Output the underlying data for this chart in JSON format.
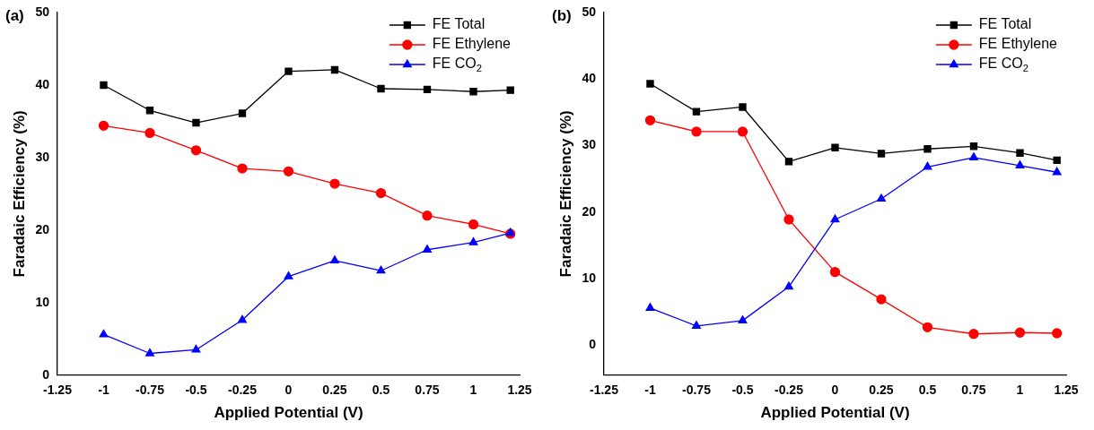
{
  "chart_data": [
    {
      "type": "line",
      "title": "(a)",
      "xlabel": "Applied Potential (V)",
      "ylabel": "Faradaic Efficiency (%)",
      "x": [
        -1,
        -0.75,
        -0.5,
        -0.25,
        0,
        0.25,
        0.5,
        0.75,
        1,
        1.2
      ],
      "series": [
        {
          "name": "FE Total",
          "color": "#000000",
          "marker": "square",
          "values": [
            40,
            36.5,
            34.8,
            36.1,
            41.9,
            42.1,
            39.5,
            39.4,
            39.1,
            39.3
          ]
        },
        {
          "name": "FE Ethylene",
          "color": "#ff0000",
          "marker": "circle",
          "values": [
            34.4,
            33.4,
            31,
            28.5,
            28.1,
            26.4,
            25.1,
            22,
            20.8,
            19.5
          ]
        },
        {
          "name": "FE CO$_{2}$",
          "color": "#0000ff",
          "marker": "triangle",
          "values": [
            5.6,
            3,
            3.5,
            7.6,
            13.6,
            15.8,
            14.4,
            17.3,
            18.3,
            19.6
          ]
        }
      ],
      "xlim": [
        -1.25,
        1.25
      ],
      "xticks": [
        -1.25,
        -1,
        -0.75,
        -0.5,
        -0.25,
        0,
        0.25,
        0.5,
        0.75,
        1,
        1.25
      ],
      "ylim": [
        0,
        50
      ],
      "yticks": [
        0,
        10,
        20,
        30,
        40,
        50
      ],
      "legend": "top right"
    },
    {
      "type": "line",
      "title": "(b)",
      "xlabel": "Applied Potential (V)",
      "ylabel": "Faradaic Efficiency (%)",
      "x": [
        -1,
        -0.75,
        -0.5,
        -0.25,
        0,
        0.25,
        0.5,
        0.75,
        1,
        1.2
      ],
      "series": [
        {
          "name": "FE Total",
          "color": "#000000",
          "marker": "square",
          "values": [
            39.3,
            35.1,
            35.8,
            27.6,
            29.7,
            28.8,
            29.5,
            29.9,
            28.9,
            27.8
          ]
        },
        {
          "name": "FE Ethylene",
          "color": "#ff0000",
          "marker": "circle",
          "values": [
            33.8,
            32.1,
            32.1,
            18.9,
            11,
            6.9,
            2.7,
            1.7,
            1.9,
            1.8
          ]
        },
        {
          "name": "FE CO$_{2}$",
          "color": "#0000ff",
          "marker": "triangle",
          "values": [
            5.6,
            2.9,
            3.7,
            8.8,
            18.9,
            22,
            26.8,
            28.2,
            27,
            26
          ]
        }
      ],
      "xlim": [
        -1.25,
        1.25
      ],
      "xticks": [
        -1.25,
        -1,
        -0.75,
        -0.5,
        -0.25,
        0,
        0.25,
        0.5,
        0.75,
        1,
        1.25
      ],
      "ylim": [
        -4.5,
        50
      ],
      "yticks": [
        0,
        10,
        20,
        30,
        40,
        50
      ],
      "legend": "top right"
    }
  ]
}
